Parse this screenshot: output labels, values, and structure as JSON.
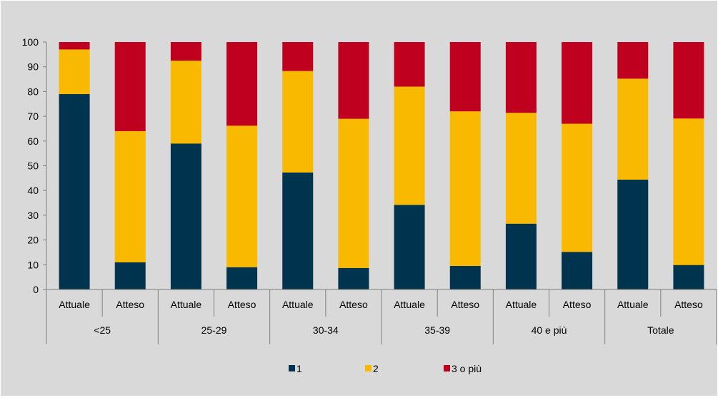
{
  "chart_data": {
    "type": "bar",
    "stacked": true,
    "groups": [
      "<25",
      "25-29",
      "30-34",
      "35-39",
      "40 e più",
      "Totale"
    ],
    "categories": [
      "Attuale",
      "Atteso",
      "Attuale",
      "Atteso",
      "Attuale",
      "Atteso",
      "Attuale",
      "Atteso",
      "Attuale",
      "Atteso",
      "Attuale",
      "Atteso"
    ],
    "series": [
      {
        "name": "1",
        "color": "#00334E",
        "values": [
          79,
          11,
          59,
          9,
          47.3,
          8.7,
          34.2,
          9.5,
          26.6,
          15.2,
          44.4,
          9.9
        ]
      },
      {
        "name": "2",
        "color": "#F9B900",
        "values": [
          18,
          53,
          33.5,
          57.2,
          41,
          60.3,
          47.8,
          62.5,
          44.8,
          51.8,
          40.8,
          59.2
        ]
      },
      {
        "name": "3 o più",
        "color": "#C0001F",
        "values": [
          3,
          36,
          7.5,
          33.8,
          11.7,
          31,
          18,
          28,
          28.6,
          33,
          14.8,
          30.9
        ]
      }
    ],
    "ylim": [
      0,
      100
    ],
    "yticks": [
      "0",
      "10",
      "20",
      "30",
      "40",
      "50",
      "60",
      "70",
      "80",
      "90",
      "100"
    ],
    "grid": false,
    "legend_position": "bottom",
    "background": "#D9D9D9"
  }
}
